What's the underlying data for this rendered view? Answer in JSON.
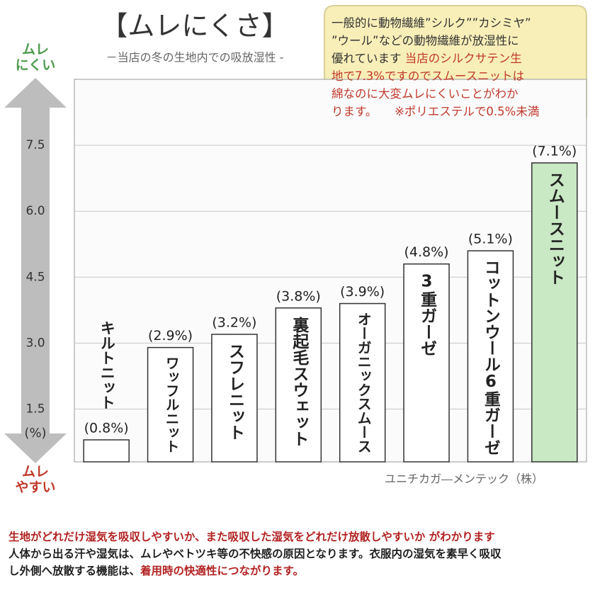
{
  "chart_data": {
    "type": "bar",
    "title": "【ムレにくさ】",
    "subtitle": "－当店の冬の生地内での吸放湿性 -",
    "categories": [
      "キルトニット",
      "ワッフルニット",
      "スフレニット",
      "裏起毛スウェット",
      "オーガニックスムース",
      "3重ガーゼ",
      "コットンウール6重ガーゼ",
      "スムースニット"
    ],
    "values": [
      0.8,
      2.9,
      3.2,
      3.8,
      3.9,
      4.8,
      5.1,
      7.1
    ],
    "value_labels": [
      "(0.8%)",
      "(2.9%)",
      "(3.2%)",
      "(3.8%)",
      "(3.9%)",
      "(4.8%)",
      "(5.1%)",
      "(7.1%)"
    ],
    "colors": [
      "#ffffff",
      "#ffffff",
      "#ffffff",
      "#ffffff",
      "#ffffff",
      "#ffffff",
      "#ffffff",
      "#c9e8c4"
    ],
    "ylim": [
      0.3,
      9.0
    ],
    "yticks": [
      1.5,
      {
        "value": 3,
        "label": "3.0"
      },
      4.5,
      {
        "value": 6,
        "label": "6.0"
      },
      7.5
    ],
    "y_unit": "(%)",
    "grid": true,
    "axis_top_label": "ムレ\nにくい",
    "axis_bottom_label": "ムレ\nやすい",
    "source": "ユニチカガ―メンテック（株）"
  },
  "note": {
    "lines": [
      [
        {
          "text": "一般的に動物繊維”シルク””カシミヤ”",
          "color": "#333333"
        }
      ],
      [
        {
          "text": "”ウール”などの動物繊維が放湿性に",
          "color": "#333333"
        }
      ],
      [
        {
          "text": "優れています ",
          "color": "#333333"
        },
        {
          "text": "当店のシルクサテン生",
          "color": "#c0392b"
        }
      ],
      [
        {
          "text": "地で7.3%ですのでスムースニットは",
          "color": "#c0392b"
        }
      ],
      [
        {
          "text": "綿なのに大変ムレにくいことがわか",
          "color": "#c0392b"
        }
      ],
      [
        {
          "text": "ります。",
          "color": "#c0392b"
        },
        {
          "text": "　　※ポリエステルで0.5%未満",
          "color": "#c0392b"
        }
      ]
    ]
  },
  "footer": {
    "lines": [
      [
        {
          "text": "生地がどれだけ湿気を吸収しやすいか、また吸収した湿気をどれだけ放散しやすいか がわかります",
          "color": "#b22222"
        }
      ],
      [
        {
          "text": "人体から出る汗や湿気は、ムレやベトツキ等の不快感の原因となります。衣服内の湿気を素早く吸収",
          "color": "#222222"
        }
      ],
      [
        {
          "text": "し外側へ放散する機能は、",
          "color": "#222222"
        },
        {
          "text": "着用時の快適性につながります。",
          "color": "#b22222"
        }
      ]
    ]
  }
}
